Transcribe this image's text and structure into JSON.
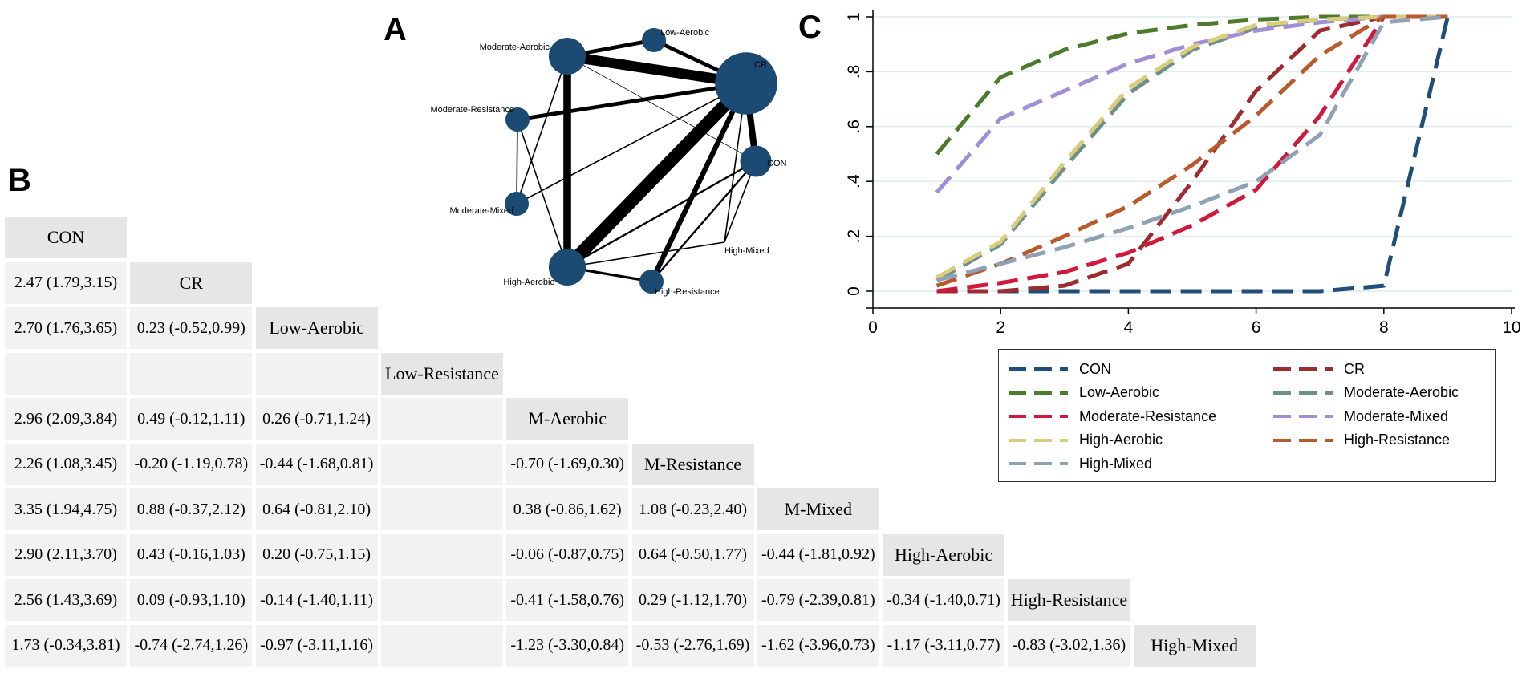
{
  "panels": {
    "a": "A",
    "b": "B",
    "c": "C"
  },
  "network": {
    "node_color": "#1b4a73",
    "nodes": [
      {
        "id": "moderate-aerobic",
        "label": "Moderate-Aerobic",
        "size": 3
      },
      {
        "id": "low-aerobic",
        "label": "Low-Aerobic",
        "size": 1
      },
      {
        "id": "cr",
        "label": "CR",
        "size": 10
      },
      {
        "id": "moderate-resistance",
        "label": "Moderate-Resistance",
        "size": 1
      },
      {
        "id": "con",
        "label": "CON",
        "size": 2
      },
      {
        "id": "moderate-mixed",
        "label": "Moderate-Mixed",
        "size": 1
      },
      {
        "id": "high-mixed",
        "label": "High-Mixed",
        "size": 0
      },
      {
        "id": "high-aerobic",
        "label": "High-Aerobic",
        "size": 3
      },
      {
        "id": "high-resistance",
        "label": "High-Resistance",
        "size": 1
      }
    ],
    "edges": [
      {
        "from": "moderate-aerobic",
        "to": "cr",
        "weight": 8
      },
      {
        "from": "moderate-aerobic",
        "to": "high-aerobic",
        "weight": 6
      },
      {
        "from": "moderate-aerobic",
        "to": "low-aerobic",
        "weight": 3
      },
      {
        "from": "moderate-aerobic",
        "to": "moderate-mixed",
        "weight": 1
      },
      {
        "from": "moderate-aerobic",
        "to": "con",
        "weight": 0.5
      },
      {
        "from": "low-aerobic",
        "to": "cr",
        "weight": 3
      },
      {
        "from": "cr",
        "to": "high-aerobic",
        "weight": 10
      },
      {
        "from": "cr",
        "to": "high-resistance",
        "weight": 4
      },
      {
        "from": "cr",
        "to": "con",
        "weight": 5
      },
      {
        "from": "cr",
        "to": "moderate-resistance",
        "weight": 3
      },
      {
        "from": "cr",
        "to": "moderate-mixed",
        "weight": 1
      },
      {
        "from": "cr",
        "to": "high-mixed",
        "weight": 1
      },
      {
        "from": "moderate-resistance",
        "to": "moderate-mixed",
        "weight": 1
      },
      {
        "from": "moderate-resistance",
        "to": "high-aerobic",
        "weight": 1
      },
      {
        "from": "high-aerobic",
        "to": "con",
        "weight": 1.5
      },
      {
        "from": "high-aerobic",
        "to": "high-resistance",
        "weight": 2
      },
      {
        "from": "high-aerobic",
        "to": "high-mixed",
        "weight": 1
      },
      {
        "from": "high-resistance",
        "to": "con",
        "weight": 1.5
      },
      {
        "from": "con",
        "to": "high-mixed",
        "weight": 1
      }
    ]
  },
  "league": {
    "treatments": [
      "CON",
      "CR",
      "Low-Aerobic",
      "Low-Resistance",
      "M-Aerobic",
      "M-Resistance",
      "M-Mixed",
      "High-Aerobic",
      "High-Resistance",
      "High-Mixed"
    ],
    "cells": [
      [],
      [
        "2.47 (1.79,3.15)"
      ],
      [
        "2.70 (1.76,3.65)",
        "0.23 (-0.52,0.99)"
      ],
      [
        "",
        "",
        ""
      ],
      [
        "2.96 (2.09,3.84)",
        "0.49 (-0.12,1.11)",
        "0.26 (-0.71,1.24)",
        ""
      ],
      [
        "2.26 (1.08,3.45)",
        "-0.20 (-1.19,0.78)",
        "-0.44 (-1.68,0.81)",
        "",
        "-0.70 (-1.69,0.30)"
      ],
      [
        "3.35 (1.94,4.75)",
        "0.88 (-0.37,2.12)",
        "0.64 (-0.81,2.10)",
        "",
        "0.38 (-0.86,1.62)",
        "1.08 (-0.23,2.40)"
      ],
      [
        "2.90 (2.11,3.70)",
        "0.43 (-0.16,1.03)",
        "0.20 (-0.75,1.15)",
        "",
        "-0.06 (-0.87,0.75)",
        "0.64 (-0.50,1.77)",
        "-0.44 (-1.81,0.92)"
      ],
      [
        "2.56 (1.43,3.69)",
        "0.09 (-0.93,1.10)",
        "-0.14 (-1.40,1.11)",
        "",
        "-0.41 (-1.58,0.76)",
        "0.29 (-1.12,1.70)",
        "-0.79 (-2.39,0.81)",
        "-0.34 (-1.40,0.71)"
      ],
      [
        "1.73 (-0.34,3.81)",
        "-0.74 (-2.74,1.26)",
        "-0.97 (-3.11,1.16)",
        "",
        "-1.23 (-3.30,0.84)",
        "-0.53 (-2.76,1.69)",
        "-1.62 (-3.96,0.73)",
        "-1.17 (-3.11,0.77)",
        "-0.83 (-3.02,1.36)"
      ]
    ]
  },
  "chart_data": {
    "type": "line",
    "x": [
      1,
      2,
      3,
      4,
      5,
      6,
      7,
      8,
      9
    ],
    "xlim": [
      0,
      10
    ],
    "ylim": [
      0,
      1
    ],
    "xticks": [
      0,
      2,
      4,
      6,
      8,
      10
    ],
    "yticks": [
      0,
      0.2,
      0.4,
      0.6,
      0.8,
      1
    ],
    "xtick_labels": [
      "0",
      "2",
      "4",
      "6",
      "8",
      "10"
    ],
    "ytick_labels": [
      "0",
      ".2",
      ".4",
      ".6",
      ".8",
      "1"
    ],
    "title": "",
    "xlabel": "",
    "ylabel": "",
    "grid": true,
    "legend_position": "bottom-right",
    "series": [
      {
        "name": "CON",
        "color": "#1f4e79",
        "values": [
          0,
          0,
          0,
          0,
          0,
          0,
          0,
          0.02,
          1
        ]
      },
      {
        "name": "CR",
        "color": "#9b2d30",
        "values": [
          0,
          0,
          0.02,
          0.1,
          0.4,
          0.73,
          0.95,
          1,
          1
        ]
      },
      {
        "name": "Low-Aerobic",
        "color": "#4e7a2b",
        "values": [
          0.5,
          0.78,
          0.88,
          0.94,
          0.97,
          0.99,
          1,
          1,
          1
        ]
      },
      {
        "name": "Moderate-Aerobic",
        "color": "#6e8f8a",
        "values": [
          0.04,
          0.17,
          0.45,
          0.72,
          0.88,
          0.96,
          0.99,
          1,
          1
        ]
      },
      {
        "name": "Moderate-Resistance",
        "color": "#d0173c",
        "values": [
          0,
          0.03,
          0.07,
          0.14,
          0.24,
          0.37,
          0.64,
          1,
          1
        ]
      },
      {
        "name": "Moderate-Mixed",
        "color": "#a08fd6",
        "values": [
          0.36,
          0.63,
          0.73,
          0.83,
          0.9,
          0.95,
          0.98,
          1,
          1
        ]
      },
      {
        "name": "High-Aerobic",
        "color": "#d9cc7a",
        "values": [
          0.05,
          0.18,
          0.47,
          0.74,
          0.89,
          0.97,
          0.99,
          1,
          1
        ]
      },
      {
        "name": "High-Resistance",
        "color": "#b85a2c",
        "values": [
          0.02,
          0.1,
          0.2,
          0.31,
          0.46,
          0.64,
          0.86,
          1,
          1
        ]
      },
      {
        "name": "High-Mixed",
        "color": "#8fa1b5",
        "values": [
          0.04,
          0.1,
          0.16,
          0.23,
          0.31,
          0.4,
          0.57,
          0.98,
          1
        ]
      }
    ]
  }
}
